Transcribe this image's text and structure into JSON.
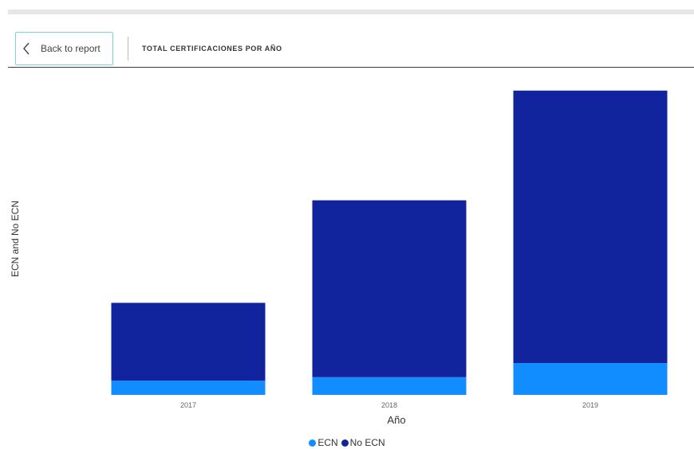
{
  "nav": {
    "back_label": "Back to report",
    "report_title": "TOTAL CERTIFICACIONES POR AÑO"
  },
  "chart_data": {
    "type": "bar",
    "stacked": true,
    "categories": [
      "2017",
      "2018",
      "2019"
    ],
    "series": [
      {
        "name": "ECN",
        "color": "#118DFF",
        "values": [
          2,
          2.5,
          4.5
        ]
      },
      {
        "name": "No ECN",
        "color": "#12239E",
        "values": [
          11,
          25,
          38.5
        ]
      }
    ],
    "xlabel": "Año",
    "ylabel": "ECN and No ECN",
    "ylim": [
      0,
      45
    ],
    "grid": false,
    "legend": "bottom-center"
  }
}
